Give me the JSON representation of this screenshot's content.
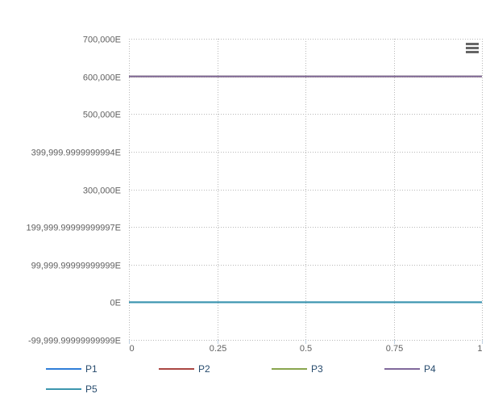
{
  "chart_data": {
    "type": "line",
    "x": [
      0,
      1
    ],
    "xlim": [
      0,
      1
    ],
    "ylim": [
      -99999.99999999999,
      700000
    ],
    "x_ticks": [
      {
        "value": 0,
        "label": "0"
      },
      {
        "value": 0.25,
        "label": "0.25"
      },
      {
        "value": 0.5,
        "label": "0.5"
      },
      {
        "value": 0.75,
        "label": "0.75"
      },
      {
        "value": 1,
        "label": "1"
      }
    ],
    "y_ticks": [
      {
        "value": 700000,
        "label": "700,000E"
      },
      {
        "value": 600000,
        "label": "600,000E"
      },
      {
        "value": 500000,
        "label": "500,000E"
      },
      {
        "value": 399999.9999999999,
        "label": "399,999.9999999994E"
      },
      {
        "value": 300000,
        "label": "300,000E"
      },
      {
        "value": 199999.9999999999,
        "label": "199,999.99999999997E"
      },
      {
        "value": 99999.99999999999,
        "label": "99,999.99999999999E"
      },
      {
        "value": 0,
        "label": "0E"
      },
      {
        "value": -99999.99999999999,
        "label": "-99,999.99999999999E"
      }
    ],
    "grid": true,
    "legend_position": "bottom",
    "series": [
      {
        "name": "P1",
        "color": "#2f7ed8",
        "values": [
          0,
          0
        ]
      },
      {
        "name": "P2",
        "color": "#aa4643",
        "values": [
          600000,
          600000
        ]
      },
      {
        "name": "P3",
        "color": "#89a54e",
        "values": [
          600000,
          600000
        ]
      },
      {
        "name": "P4",
        "color": "#80699b",
        "values": [
          600000,
          600000
        ]
      },
      {
        "name": "P5",
        "color": "#3d96ae",
        "values": [
          0,
          0
        ]
      }
    ]
  },
  "toolbar": {
    "menu_icon": "hamburger-menu-icon"
  }
}
